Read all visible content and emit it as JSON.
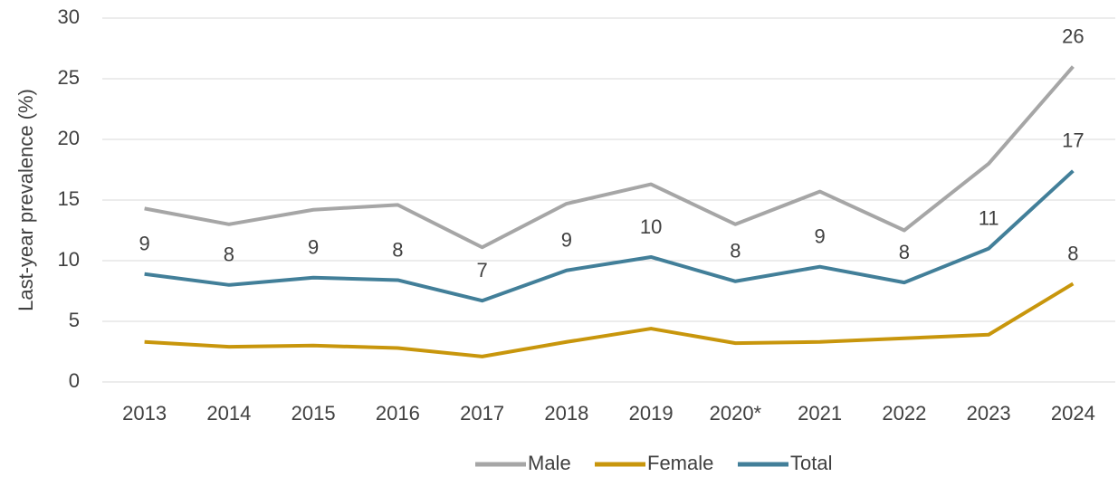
{
  "chart_data": {
    "type": "line",
    "y_label": "Last-year prevalence (%)",
    "categories": [
      "2013",
      "2014",
      "2015",
      "2016",
      "2017",
      "2018",
      "2019",
      "2020*",
      "2021",
      "2022",
      "2023",
      "2024"
    ],
    "series": [
      {
        "name": "Male",
        "color": "#a6a6a6",
        "values": [
          14.3,
          13.0,
          14.2,
          14.6,
          11.1,
          14.7,
          16.3,
          13.0,
          15.7,
          12.5,
          18.0,
          26.0
        ],
        "value_labels": [
          null,
          null,
          null,
          null,
          null,
          null,
          null,
          null,
          null,
          null,
          null,
          "26"
        ]
      },
      {
        "name": "Female",
        "color": "#c8960c",
        "values": [
          3.3,
          2.9,
          3.0,
          2.8,
          2.1,
          3.3,
          4.4,
          3.2,
          3.3,
          3.6,
          3.9,
          8.1
        ],
        "value_labels": [
          null,
          null,
          null,
          null,
          null,
          null,
          null,
          null,
          null,
          null,
          null,
          "8"
        ]
      },
      {
        "name": "Total",
        "color": "#427f99",
        "values": [
          8.9,
          8.0,
          8.6,
          8.4,
          6.7,
          9.2,
          10.3,
          8.3,
          9.5,
          8.2,
          11.0,
          17.4
        ],
        "value_labels": [
          "9",
          "8",
          "9",
          "8",
          "7",
          "9",
          "10",
          "8",
          "9",
          "8",
          "11",
          "17"
        ]
      }
    ],
    "ylim": [
      0,
      30
    ],
    "yticks": [
      0,
      5,
      10,
      15,
      20,
      25,
      30
    ],
    "grid": true,
    "legend": "bottom"
  }
}
